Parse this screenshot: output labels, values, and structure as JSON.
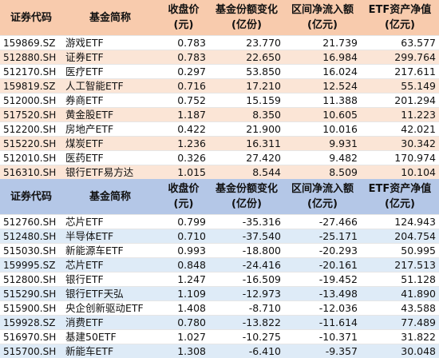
{
  "headers": {
    "code": "证券代码",
    "name": "基金简称",
    "price_l1": "收盘价",
    "price_l2": "(元)",
    "share_l1": "基金份额变化",
    "share_l2": "(亿份)",
    "flow_l1": "区间净流入额",
    "flow_l2": "(亿元)",
    "nav_l1": "ETF资产净值",
    "nav_l2": "(亿元)"
  },
  "inflow": [
    {
      "code": "159869.SZ",
      "name": "游戏ETF",
      "price": "0.783",
      "share_change": "23.770",
      "net_inflow": "21.739",
      "net_assets": "63.577"
    },
    {
      "code": "512880.SH",
      "name": "证券ETF",
      "price": "0.783",
      "share_change": "22.650",
      "net_inflow": "16.984",
      "net_assets": "299.764"
    },
    {
      "code": "512170.SH",
      "name": "医疗ETF",
      "price": "0.297",
      "share_change": "53.850",
      "net_inflow": "16.024",
      "net_assets": "217.611"
    },
    {
      "code": "159819.SZ",
      "name": "人工智能ETF",
      "price": "0.716",
      "share_change": "17.210",
      "net_inflow": "12.524",
      "net_assets": "55.149"
    },
    {
      "code": "512000.SH",
      "name": "券商ETF",
      "price": "0.752",
      "share_change": "15.159",
      "net_inflow": "11.388",
      "net_assets": "201.294"
    },
    {
      "code": "517520.SH",
      "name": "黄金股ETF",
      "price": "1.187",
      "share_change": "8.350",
      "net_inflow": "10.605",
      "net_assets": "11.223"
    },
    {
      "code": "512200.SH",
      "name": "房地产ETF",
      "price": "0.422",
      "share_change": "21.900",
      "net_inflow": "10.016",
      "net_assets": "42.021"
    },
    {
      "code": "515220.SH",
      "name": "煤炭ETF",
      "price": "1.236",
      "share_change": "16.311",
      "net_inflow": "9.931",
      "net_assets": "30.342"
    },
    {
      "code": "512010.SH",
      "name": "医药ETF",
      "price": "0.326",
      "share_change": "27.420",
      "net_inflow": "9.482",
      "net_assets": "170.974"
    },
    {
      "code": "516310.SH",
      "name": "银行ETF易方达",
      "price": "1.015",
      "share_change": "8.544",
      "net_inflow": "8.509",
      "net_assets": "10.104"
    }
  ],
  "outflow": [
    {
      "code": "512760.SH",
      "name": "芯片ETF",
      "price": "0.799",
      "share_change": "-35.316",
      "net_inflow": "-27.466",
      "net_assets": "124.943"
    },
    {
      "code": "512480.SH",
      "name": "半导体ETF",
      "price": "0.710",
      "share_change": "-37.540",
      "net_inflow": "-25.171",
      "net_assets": "204.754"
    },
    {
      "code": "515030.SH",
      "name": "新能源车ETF",
      "price": "0.993",
      "share_change": "-18.800",
      "net_inflow": "-20.293",
      "net_assets": "50.995"
    },
    {
      "code": "159995.SZ",
      "name": "芯片ETF",
      "price": "0.848",
      "share_change": "-24.416",
      "net_inflow": "-20.161",
      "net_assets": "217.513"
    },
    {
      "code": "512800.SH",
      "name": "银行ETF",
      "price": "1.247",
      "share_change": "-16.509",
      "net_inflow": "-19.452",
      "net_assets": "51.128"
    },
    {
      "code": "515290.SH",
      "name": "银行ETF天弘",
      "price": "1.109",
      "share_change": "-12.973",
      "net_inflow": "-13.498",
      "net_assets": "41.890"
    },
    {
      "code": "515900.SH",
      "name": "央企创新驱动ETF",
      "price": "1.408",
      "share_change": "-8.710",
      "net_inflow": "-12.036",
      "net_assets": "43.588"
    },
    {
      "code": "159928.SZ",
      "name": "消费ETF",
      "price": "0.780",
      "share_change": "-13.822",
      "net_inflow": "-11.614",
      "net_assets": "77.489"
    },
    {
      "code": "516970.SH",
      "name": "基建50ETF",
      "price": "1.027",
      "share_change": "-10.275",
      "net_inflow": "-10.371",
      "net_assets": "31.822"
    },
    {
      "code": "515700.SH",
      "name": "新能车ETF",
      "price": "1.308",
      "share_change": "-6.410",
      "net_inflow": "-9.357",
      "net_assets": "30.048"
    }
  ]
}
